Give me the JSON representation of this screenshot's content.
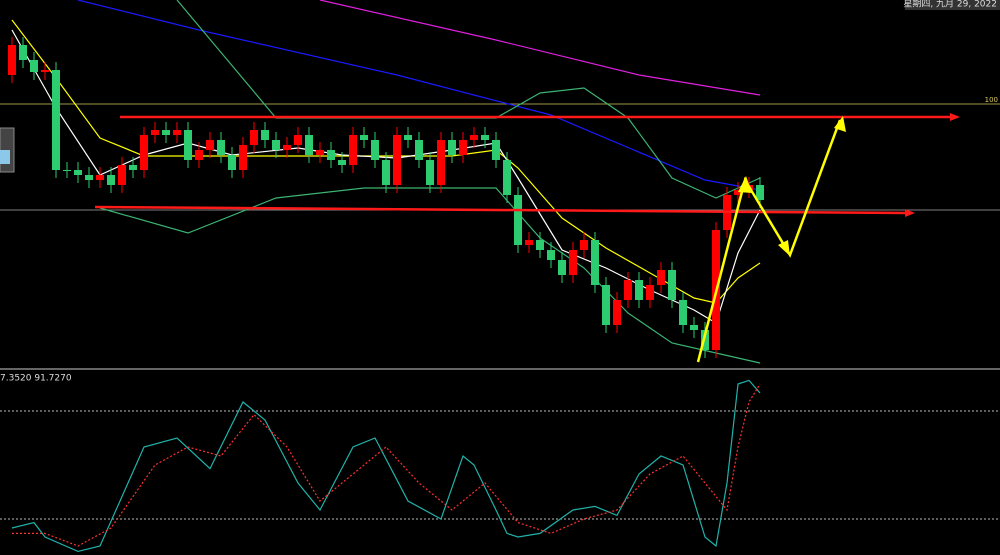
{
  "header": {
    "date": "星期四, 九月 29, 2022"
  },
  "chart_data": [
    {
      "type": "candlestick",
      "up_color": "#ff0000",
      "down_color": "#2ecc71",
      "ylim": [
        0,
        368
      ],
      "annotations": [
        "100"
      ],
      "open": [
        293,
        323,
        308,
        296,
        298,
        198,
        198,
        193,
        188,
        193,
        183,
        203,
        198,
        233,
        238,
        233,
        238,
        208,
        218,
        228,
        213,
        198,
        223,
        238,
        228,
        218,
        223,
        233,
        213,
        218,
        208,
        203,
        233,
        228,
        208,
        183,
        233,
        228,
        208,
        183,
        228,
        213,
        228,
        233,
        228,
        208,
        173,
        123,
        128,
        118,
        108,
        93,
        118,
        128,
        83,
        43,
        68,
        88,
        68,
        83,
        98,
        68,
        43,
        38,
        18,
        138,
        173,
        178,
        183
      ],
      "high": [
        331,
        331,
        316,
        306,
        306,
        206,
        206,
        201,
        201,
        201,
        211,
        211,
        241,
        246,
        246,
        246,
        246,
        226,
        236,
        236,
        221,
        231,
        246,
        246,
        236,
        231,
        241,
        241,
        226,
        226,
        216,
        241,
        241,
        236,
        216,
        241,
        241,
        236,
        216,
        236,
        236,
        236,
        241,
        241,
        236,
        216,
        181,
        136,
        136,
        126,
        116,
        126,
        136,
        136,
        91,
        76,
        96,
        96,
        91,
        106,
        106,
        76,
        51,
        46,
        146,
        181,
        186,
        191,
        191
      ],
      "low": [
        285,
        300,
        288,
        288,
        190,
        190,
        185,
        180,
        180,
        175,
        175,
        190,
        190,
        225,
        225,
        225,
        200,
        200,
        210,
        205,
        190,
        190,
        215,
        220,
        210,
        210,
        215,
        205,
        205,
        200,
        195,
        195,
        220,
        200,
        175,
        175,
        220,
        200,
        175,
        175,
        205,
        205,
        220,
        220,
        200,
        165,
        115,
        115,
        110,
        100,
        85,
        85,
        110,
        75,
        35,
        35,
        60,
        60,
        60,
        75,
        60,
        35,
        30,
        10,
        10,
        130,
        165,
        170,
        160
      ],
      "close": [
        323,
        308,
        296,
        298,
        198,
        198,
        193,
        188,
        193,
        183,
        203,
        198,
        233,
        238,
        233,
        238,
        208,
        218,
        228,
        213,
        198,
        223,
        238,
        228,
        218,
        223,
        233,
        213,
        218,
        208,
        203,
        233,
        228,
        208,
        183,
        233,
        228,
        208,
        183,
        228,
        213,
        228,
        233,
        228,
        208,
        173,
        123,
        128,
        118,
        108,
        93,
        118,
        128,
        83,
        43,
        68,
        88,
        68,
        83,
        98,
        68,
        43,
        38,
        18,
        138,
        173,
        178,
        183,
        168
      ],
      "series": [
        {
          "color": "#1a1aff",
          "x": [
            6,
            17,
            35,
            49,
            63,
            68
          ],
          "values": [
            368,
            338,
            293,
            253,
            188,
            178
          ]
        },
        {
          "color": "#e020e0",
          "x": [
            28,
            44,
            57,
            68
          ],
          "values": [
            368,
            328,
            293,
            273
          ]
        },
        {
          "color": "#3cb371",
          "x": [
            15,
            24,
            40,
            44,
            48,
            52,
            56,
            60,
            64,
            68
          ],
          "values": [
            368,
            250,
            250,
            250,
            275,
            280,
            250,
            190,
            170,
            190
          ]
        },
        {
          "color": "#3cb371",
          "x": [
            8,
            16,
            24,
            32,
            40,
            44,
            48,
            52,
            56,
            60,
            64,
            68
          ],
          "values": [
            160,
            135,
            170,
            180,
            180,
            180,
            130,
            100,
            55,
            25,
            15,
            5
          ]
        },
        {
          "color": "#ffff00",
          "x": [
            0,
            4,
            8,
            12,
            20,
            30,
            40,
            44,
            46,
            50,
            54,
            58,
            62,
            64,
            66,
            68
          ],
          "values": [
            348,
            290,
            230,
            212,
            212,
            212,
            212,
            218,
            200,
            150,
            120,
            95,
            70,
            65,
            90,
            105
          ]
        },
        {
          "color": "#ffffff",
          "x": [
            0,
            4,
            8,
            12,
            16,
            20,
            26,
            30,
            35,
            40,
            44,
            46,
            50,
            54,
            58,
            62,
            64,
            66,
            68
          ],
          "values": [
            338,
            260,
            193,
            213,
            225,
            213,
            220,
            213,
            210,
            218,
            225,
            190,
            118,
            100,
            78,
            58,
            45,
            115,
            158
          ]
        }
      ]
    },
    {
      "type": "line",
      "label": "7.3520 91.7270",
      "ylim": [
        0,
        100
      ],
      "levels": [
        80,
        20
      ],
      "series": [
        {
          "color": "#20b2aa",
          "dash": false,
          "x": [
            0,
            2,
            3,
            6,
            8,
            12,
            15,
            18,
            21,
            23,
            26,
            28,
            31,
            33,
            36,
            39,
            41,
            42,
            44,
            45,
            46,
            48,
            51,
            53,
            55,
            57,
            59,
            61,
            63,
            64,
            65,
            66,
            67,
            68
          ],
          "values": [
            15,
            18,
            10,
            2,
            5,
            60,
            65,
            48,
            85,
            75,
            40,
            25,
            60,
            65,
            30,
            20,
            55,
            50,
            25,
            12,
            10,
            12,
            25,
            27,
            22,
            45,
            55,
            50,
            10,
            5,
            40,
            95,
            97,
            90
          ]
        },
        {
          "color": "#ff3030",
          "dash": true,
          "x": [
            0,
            3,
            6,
            9,
            13,
            16,
            19,
            22,
            25,
            28,
            31,
            34,
            37,
            40,
            43,
            46,
            49,
            52,
            55,
            58,
            61,
            63,
            65,
            66,
            67,
            68
          ],
          "values": [
            12,
            12,
            5,
            15,
            50,
            60,
            55,
            78,
            60,
            30,
            45,
            60,
            40,
            25,
            40,
            18,
            12,
            20,
            25,
            45,
            55,
            40,
            25,
            60,
            85,
            95
          ]
        }
      ]
    }
  ]
}
